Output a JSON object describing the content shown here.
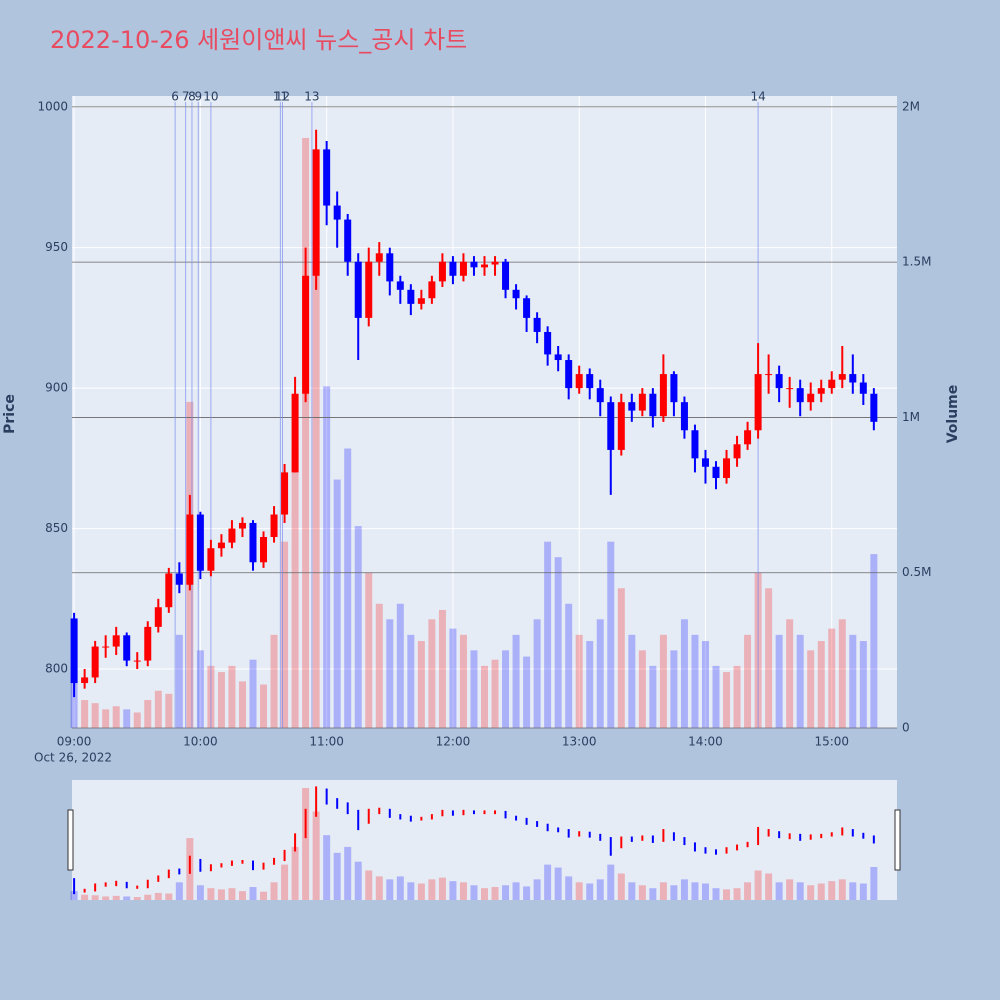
{
  "chart_data": {
    "type": "candlestick",
    "title": "2022-10-26 세원이앤씨 뉴스_공시 차트",
    "y_label": "Price",
    "y2_label": "Volume",
    "x_date_label": "Oct 26, 2022",
    "xlim": [
      "08:59",
      "15:31"
    ],
    "xticks": [
      "09:00",
      "10:00",
      "11:00",
      "12:00",
      "13:00",
      "14:00",
      "15:00"
    ],
    "ylim": [
      779,
      1004
    ],
    "yticks": [
      800,
      850,
      900,
      950,
      1000
    ],
    "y2lim": [
      0,
      2035000
    ],
    "y2ticks": [
      0,
      {
        "value": 500000,
        "label": "0.5M"
      },
      {
        "value": 1000000,
        "label": "1M"
      },
      {
        "value": 1500000,
        "label": "1.5M"
      },
      {
        "value": 2000000,
        "label": "2M"
      }
    ],
    "increasing_color": "#ff0000",
    "decreasing_color": "#0000ff",
    "grid": true,
    "x": [
      "09:00",
      "09:05",
      "09:10",
      "09:15",
      "09:20",
      "09:25",
      "09:30",
      "09:35",
      "09:40",
      "09:45",
      "09:50",
      "09:55",
      "10:00",
      "10:05",
      "10:10",
      "10:15",
      "10:20",
      "10:25",
      "10:30",
      "10:35",
      "10:40",
      "10:45",
      "10:50",
      "10:55",
      "11:00",
      "11:05",
      "11:10",
      "11:15",
      "11:20",
      "11:25",
      "11:30",
      "11:35",
      "11:40",
      "11:45",
      "11:50",
      "11:55",
      "12:00",
      "12:05",
      "12:10",
      "12:15",
      "12:20",
      "12:25",
      "12:30",
      "12:35",
      "12:40",
      "12:45",
      "12:50",
      "12:55",
      "13:00",
      "13:05",
      "13:10",
      "13:15",
      "13:20",
      "13:25",
      "13:30",
      "13:35",
      "13:40",
      "13:45",
      "13:50",
      "13:55",
      "14:00",
      "14:05",
      "14:10",
      "14:15",
      "14:20",
      "14:25",
      "14:30",
      "14:35",
      "14:40",
      "14:45",
      "14:50",
      "14:55",
      "15:00",
      "15:05",
      "15:10",
      "15:15",
      "15:20"
    ],
    "open": [
      818,
      795,
      797,
      808,
      808,
      812,
      803,
      803,
      815,
      822,
      834,
      830,
      855,
      835,
      843,
      845,
      850,
      852,
      838,
      847,
      855,
      870,
      898,
      940,
      985,
      965,
      960,
      945,
      925,
      945,
      948,
      938,
      935,
      930,
      932,
      938,
      945,
      940,
      945,
      943,
      944,
      945,
      935,
      932,
      925,
      920,
      912,
      910,
      900,
      905,
      900,
      895,
      878,
      895,
      892,
      898,
      890,
      905,
      895,
      885,
      875,
      872,
      868,
      875,
      880,
      885,
      905,
      905,
      900,
      900,
      895,
      898,
      900,
      903,
      905,
      902,
      898
    ],
    "high": [
      820,
      800,
      810,
      812,
      815,
      813,
      806,
      817,
      825,
      836,
      838,
      862,
      856,
      846,
      848,
      853,
      854,
      853,
      849,
      858,
      873,
      904,
      950,
      992,
      988,
      970,
      962,
      948,
      950,
      952,
      950,
      940,
      937,
      935,
      940,
      948,
      947,
      948,
      947,
      947,
      947,
      946,
      937,
      933,
      927,
      922,
      915,
      912,
      908,
      907,
      903,
      897,
      898,
      898,
      900,
      900,
      912,
      906,
      897,
      887,
      878,
      874,
      878,
      883,
      888,
      916,
      912,
      908,
      904,
      903,
      902,
      903,
      906,
      915,
      912,
      905,
      900
    ],
    "low": [
      790,
      793,
      795,
      804,
      805,
      801,
      800,
      801,
      813,
      820,
      827,
      828,
      832,
      833,
      840,
      843,
      847,
      835,
      836,
      845,
      852,
      870,
      895,
      935,
      958,
      950,
      940,
      910,
      922,
      940,
      933,
      930,
      926,
      928,
      930,
      936,
      937,
      938,
      940,
      940,
      940,
      932,
      928,
      920,
      916,
      908,
      906,
      896,
      898,
      896,
      890,
      862,
      876,
      888,
      890,
      886,
      888,
      890,
      882,
      870,
      866,
      864,
      866,
      872,
      878,
      882,
      898,
      895,
      893,
      890,
      892,
      895,
      898,
      900,
      898,
      894,
      885
    ],
    "close": [
      795,
      797,
      808,
      808,
      812,
      803,
      803,
      815,
      822,
      834,
      830,
      855,
      835,
      843,
      845,
      850,
      852,
      838,
      847,
      855,
      870,
      898,
      940,
      985,
      965,
      960,
      945,
      925,
      945,
      948,
      938,
      935,
      930,
      932,
      938,
      945,
      940,
      945,
      943,
      944,
      945,
      935,
      932,
      925,
      920,
      912,
      910,
      900,
      905,
      900,
      895,
      878,
      895,
      892,
      898,
      890,
      905,
      895,
      885,
      875,
      872,
      868,
      875,
      880,
      885,
      905,
      905,
      900,
      900,
      895,
      898,
      900,
      903,
      905,
      902,
      898,
      888
    ],
    "volume": [
      150000,
      90000,
      80000,
      60000,
      70000,
      60000,
      50000,
      90000,
      120000,
      110000,
      300000,
      1050000,
      250000,
      200000,
      180000,
      200000,
      150000,
      220000,
      140000,
      300000,
      600000,
      900000,
      1900000,
      1500000,
      1100000,
      800000,
      900000,
      650000,
      500000,
      400000,
      350000,
      400000,
      300000,
      280000,
      350000,
      380000,
      320000,
      300000,
      250000,
      200000,
      220000,
      250000,
      300000,
      230000,
      350000,
      600000,
      550000,
      400000,
      300000,
      280000,
      350000,
      600000,
      450000,
      300000,
      250000,
      200000,
      300000,
      250000,
      350000,
      300000,
      280000,
      200000,
      180000,
      200000,
      300000,
      500000,
      450000,
      300000,
      350000,
      300000,
      250000,
      280000,
      320000,
      350000,
      300000,
      280000,
      560000
    ],
    "events": [
      {
        "label": "6",
        "x": "09:48"
      },
      {
        "label": "7",
        "x": "09:53"
      },
      {
        "label": "8",
        "x": "09:56"
      },
      {
        "label": "9",
        "x": "09:59"
      },
      {
        "label": "10",
        "x": "10:05"
      },
      {
        "label": "11",
        "x": "10:38"
      },
      {
        "label": "12",
        "x": "10:39"
      },
      {
        "label": "13",
        "x": "10:53"
      },
      {
        "label": "14",
        "x": "14:25"
      }
    ]
  }
}
